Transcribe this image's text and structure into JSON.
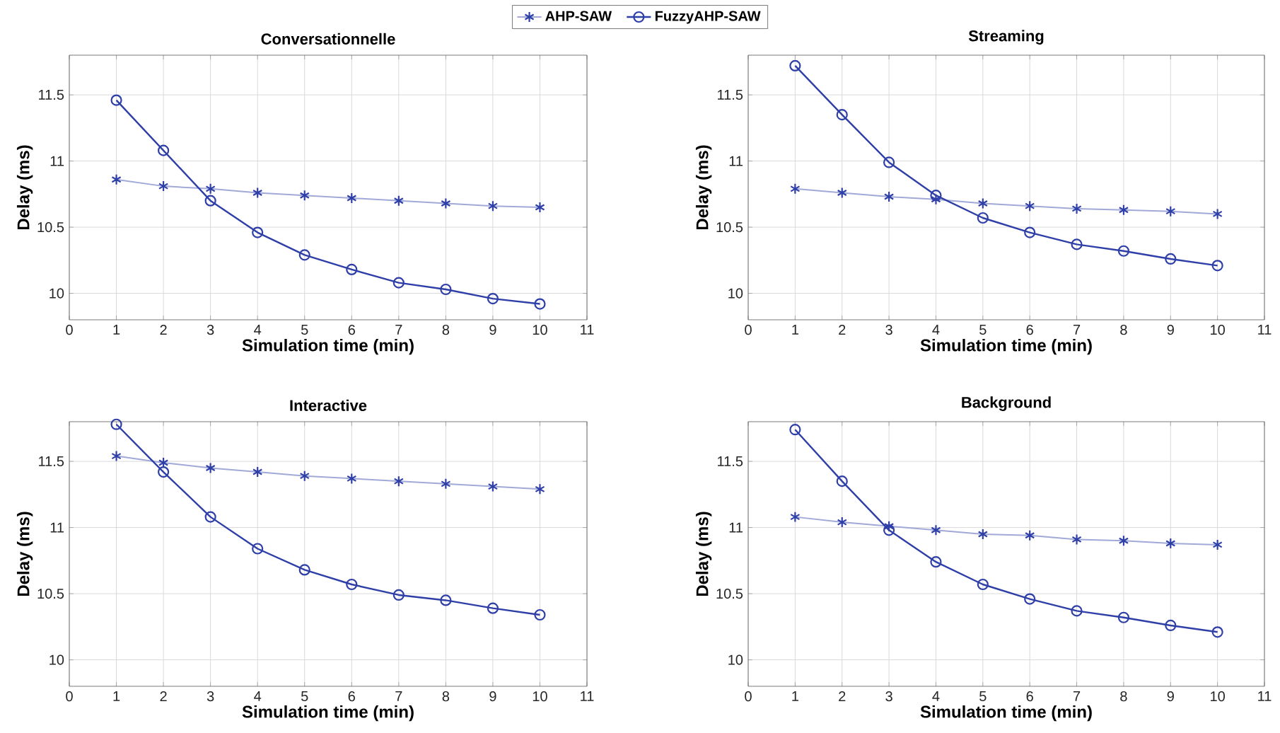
{
  "chart_data": [
    {
      "type": "line",
      "title": "Conversationnelle",
      "xlabel": "Simulation time (min)",
      "ylabel": "Delay (ms)",
      "x": [
        1,
        2,
        3,
        4,
        5,
        6,
        7,
        8,
        9,
        10
      ],
      "xlim": [
        0,
        11
      ],
      "xticks": [
        0,
        1,
        2,
        3,
        4,
        5,
        6,
        7,
        8,
        9,
        10,
        11
      ],
      "ylim": [
        9.8,
        11.8
      ],
      "yticks": [
        10,
        10.5,
        11,
        11.5
      ],
      "grid": true,
      "legend": "top",
      "line_style": "solid",
      "series": [
        {
          "name": "AHP-SAW",
          "color": "#2f3fa8",
          "marker": "cross",
          "values": [
            10.86,
            10.81,
            10.79,
            10.76,
            10.74,
            10.72,
            10.7,
            10.68,
            10.66,
            10.65
          ]
        },
        {
          "name": "FuzzyAHP-SAW",
          "color": "#2f3fa8",
          "marker": "circle",
          "values": [
            11.46,
            11.08,
            10.7,
            10.46,
            10.29,
            10.18,
            10.08,
            10.03,
            9.96,
            9.92
          ]
        }
      ]
    },
    {
      "type": "line",
      "title": "Streaming",
      "xlabel": "Simulation time (min)",
      "ylabel": "Delay (ms)",
      "x": [
        1,
        2,
        3,
        4,
        5,
        6,
        7,
        8,
        9,
        10
      ],
      "xlim": [
        0,
        11
      ],
      "xticks": [
        0,
        1,
        2,
        3,
        4,
        5,
        6,
        7,
        8,
        9,
        10,
        11
      ],
      "ylim": [
        9.8,
        11.8
      ],
      "yticks": [
        10,
        10.5,
        11,
        11.5
      ],
      "grid": true,
      "line_style": "solid",
      "series": [
        {
          "color": "#2f3fa8",
          "marker": "cross",
          "values": [
            10.79,
            10.76,
            10.73,
            10.71,
            10.68,
            10.66,
            10.64,
            10.63,
            10.62,
            10.6
          ]
        },
        {
          "color": "#2f3fa8",
          "marker": "circle",
          "values": [
            11.72,
            11.35,
            10.99,
            10.74,
            10.57,
            10.46,
            10.37,
            10.32,
            10.26,
            10.21
          ]
        }
      ]
    },
    {
      "type": "line",
      "title": "Interactive",
      "xlabel": "Simulation time (min)",
      "ylabel": "Delay (ms)",
      "x": [
        1,
        2,
        3,
        4,
        5,
        6,
        7,
        8,
        9,
        10
      ],
      "xlim": [
        0,
        11
      ],
      "xticks": [
        0,
        1,
        2,
        3,
        4,
        5,
        6,
        7,
        8,
        9,
        10,
        11
      ],
      "ylim": [
        9.8,
        11.8
      ],
      "yticks": [
        10,
        10.5,
        11,
        11.5
      ],
      "grid": true,
      "line_style": "solid",
      "series": [
        {
          "color": "#2f3fa8",
          "marker": "cross",
          "values": [
            11.54,
            11.49,
            11.45,
            11.42,
            11.39,
            11.37,
            11.35,
            11.33,
            11.31,
            11.29
          ]
        },
        {
          "color": "#2f3fa8",
          "marker": "circle",
          "values": [
            11.78,
            11.42,
            11.08,
            10.84,
            10.68,
            10.57,
            10.49,
            10.45,
            10.39,
            10.34
          ]
        }
      ]
    },
    {
      "type": "line",
      "title": "Background",
      "xlabel": "Simulation time (min)",
      "ylabel": "Delay (ms)",
      "x": [
        1,
        2,
        3,
        4,
        5,
        6,
        7,
        8,
        9,
        10
      ],
      "xlim": [
        0,
        11
      ],
      "xticks": [
        0,
        1,
        2,
        3,
        4,
        5,
        6,
        7,
        8,
        9,
        10,
        11
      ],
      "ylim": [
        9.8,
        11.8
      ],
      "yticks": [
        10,
        10.5,
        11,
        11.5
      ],
      "grid": true,
      "line_style": "solid",
      "series": [
        {
          "color": "#2f3fa8",
          "marker": "cross",
          "values": [
            11.08,
            11.04,
            11.01,
            10.98,
            10.95,
            10.94,
            10.91,
            10.9,
            10.88,
            10.87
          ]
        },
        {
          "color": "#2f3fa8",
          "marker": "circle",
          "values": [
            11.74,
            11.35,
            10.98,
            10.74,
            10.57,
            10.46,
            10.37,
            10.32,
            10.26,
            10.21
          ]
        }
      ]
    }
  ]
}
